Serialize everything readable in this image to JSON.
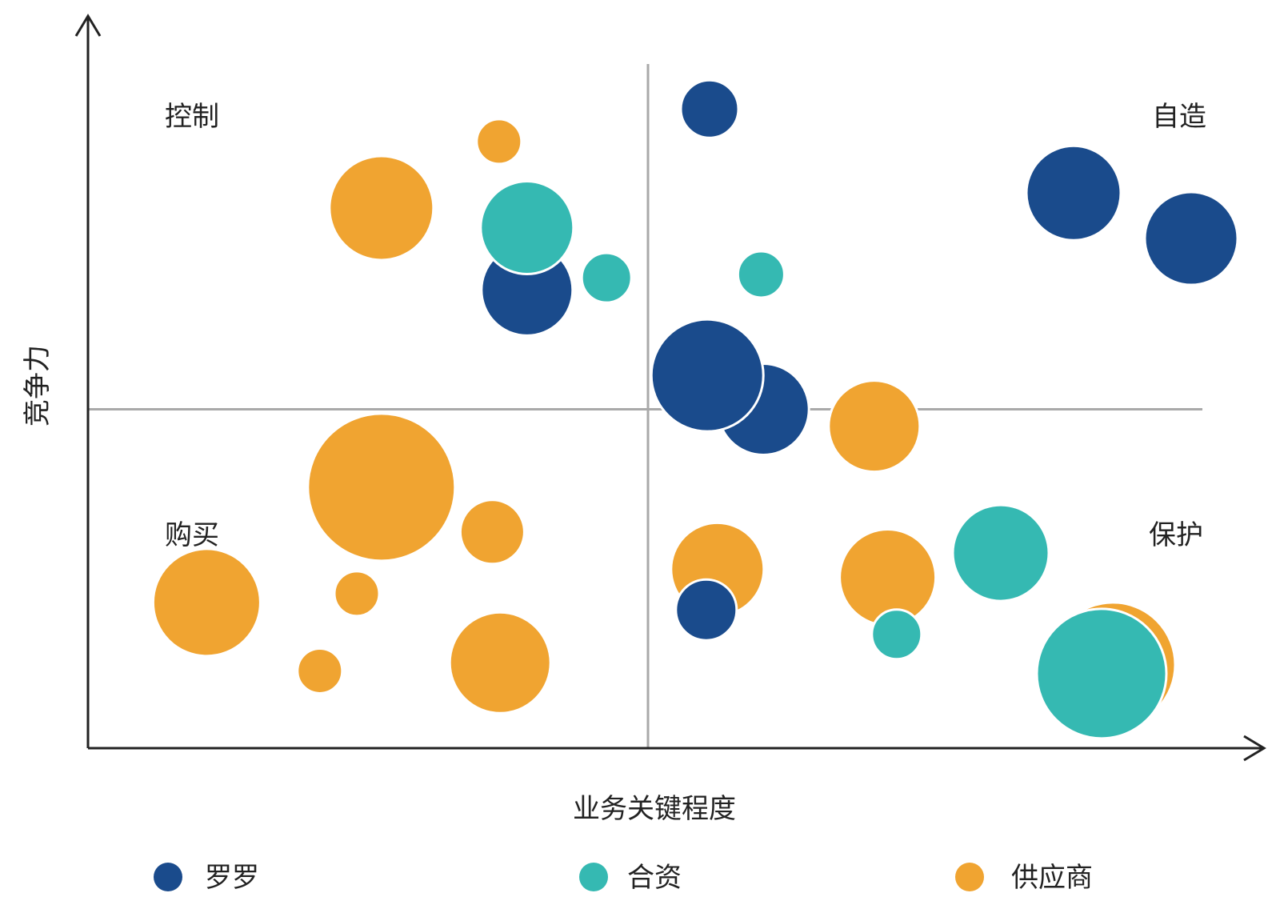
{
  "chart_data": {
    "type": "bubble",
    "xlabel": "业务关键程度",
    "ylabel": "竞争力",
    "xlim": [
      0,
      100
    ],
    "ylim": [
      0,
      100
    ],
    "dividers": {
      "x": 50,
      "y": 50
    },
    "quadrants": [
      {
        "label": "控制",
        "position": "top-left"
      },
      {
        "label": "自造",
        "position": "top-right"
      },
      {
        "label": "购买",
        "position": "bottom-left"
      },
      {
        "label": "保护",
        "position": "bottom-right"
      }
    ],
    "colors": {
      "罗罗": "#1a4b8c",
      "合资": "#35b9b2",
      "供应商": "#f0a431"
    },
    "series": [
      {
        "name": "供应商",
        "color": "#f0a431",
        "points": [
          {
            "x": 26.2,
            "y": 79.7,
            "size": 65
          },
          {
            "x": 26.2,
            "y": 38.5,
            "size": 92
          },
          {
            "x": 10.6,
            "y": 21.5,
            "size": 67
          },
          {
            "x": 20.7,
            "y": 11.4,
            "size": 28
          },
          {
            "x": 24.0,
            "y": 22.8,
            "size": 28
          },
          {
            "x": 36.7,
            "y": 89.5,
            "size": 28
          },
          {
            "x": 36.1,
            "y": 31.9,
            "size": 40
          },
          {
            "x": 36.8,
            "y": 12.6,
            "size": 63
          },
          {
            "x": 56.2,
            "y": 26.4,
            "size": 58
          },
          {
            "x": 70.2,
            "y": 47.5,
            "size": 57
          },
          {
            "x": 71.4,
            "y": 25.2,
            "size": 60
          },
          {
            "x": 91.5,
            "y": 12.3,
            "size": 78
          }
        ]
      },
      {
        "name": "罗罗",
        "color": "#1a4b8c",
        "points": [
          {
            "x": 39.2,
            "y": 67.6,
            "size": 57
          },
          {
            "x": 55.5,
            "y": 94.3,
            "size": 36
          },
          {
            "x": 60.3,
            "y": 50.0,
            "size": 57
          },
          {
            "x": 55.3,
            "y": 55.0,
            "size": 70
          },
          {
            "x": 88.0,
            "y": 81.9,
            "size": 59
          },
          {
            "x": 98.5,
            "y": 75.2,
            "size": 58
          },
          {
            "x": 55.2,
            "y": 20.4,
            "size": 38
          }
        ]
      },
      {
        "name": "合资",
        "color": "#35b9b2",
        "points": [
          {
            "x": 39.2,
            "y": 76.8,
            "size": 58
          },
          {
            "x": 46.3,
            "y": 69.4,
            "size": 31
          },
          {
            "x": 60.1,
            "y": 69.9,
            "size": 29
          },
          {
            "x": 81.5,
            "y": 28.8,
            "size": 60
          },
          {
            "x": 72.2,
            "y": 16.8,
            "size": 31
          },
          {
            "x": 90.5,
            "y": 11.0,
            "size": 81
          }
        ]
      }
    ],
    "legend": {
      "placement": "bottom",
      "items": [
        {
          "name": "罗罗",
          "color": "#1a4b8c"
        },
        {
          "name": "合资",
          "color": "#35b9b2"
        },
        {
          "name": "供应商",
          "color": "#f0a431"
        }
      ]
    },
    "grid": false
  }
}
